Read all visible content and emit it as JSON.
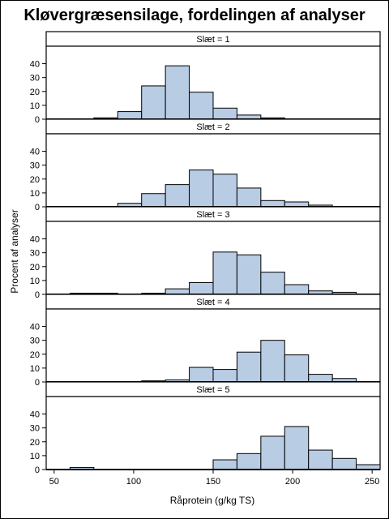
{
  "chart_data": {
    "type": "bar",
    "title": "Kløvergræsensilage, fordelingen af analyser",
    "xlabel": "Råprotein (g/kg TS)",
    "ylabel": "Procent af analyser",
    "xlim": [
      45,
      255
    ],
    "ylim": [
      0,
      45
    ],
    "xticks": [
      50,
      100,
      150,
      200,
      250
    ],
    "yticks": [
      0,
      10,
      20,
      30,
      40
    ],
    "bin_width": 15,
    "bin_starts": [
      45,
      60,
      75,
      90,
      105,
      120,
      135,
      150,
      165,
      180,
      195,
      210,
      225,
      240
    ],
    "panels": [
      {
        "label": "Slæt = 1",
        "values": [
          0,
          0.3,
          1,
          5.5,
          24,
          38.5,
          19.5,
          8,
          3,
          1,
          0,
          0,
          0,
          0
        ]
      },
      {
        "label": "Slæt = 2",
        "values": [
          0,
          0.3,
          0.3,
          2.5,
          9.5,
          16,
          26.5,
          23.5,
          13.5,
          4.5,
          3.5,
          1.2,
          0.2,
          0
        ]
      },
      {
        "label": "Slæt = 3",
        "values": [
          0,
          0.8,
          0.8,
          0.3,
          0.8,
          4,
          8.5,
          30.5,
          28.5,
          16,
          7,
          2.5,
          1.5,
          0
        ]
      },
      {
        "label": "Slæt = 4",
        "values": [
          0,
          0.3,
          0.3,
          0.3,
          0.8,
          1.5,
          10.5,
          9,
          21.5,
          30,
          19.5,
          5.5,
          2.5,
          0
        ]
      },
      {
        "label": "Slæt = 5",
        "values": [
          0,
          1.5,
          0,
          0,
          0,
          0,
          0,
          7,
          11.5,
          24,
          31,
          14,
          8,
          3.5
        ]
      }
    ],
    "bar_color": "#b8cce4",
    "bar_edge_color": "#000000",
    "grid": false
  }
}
